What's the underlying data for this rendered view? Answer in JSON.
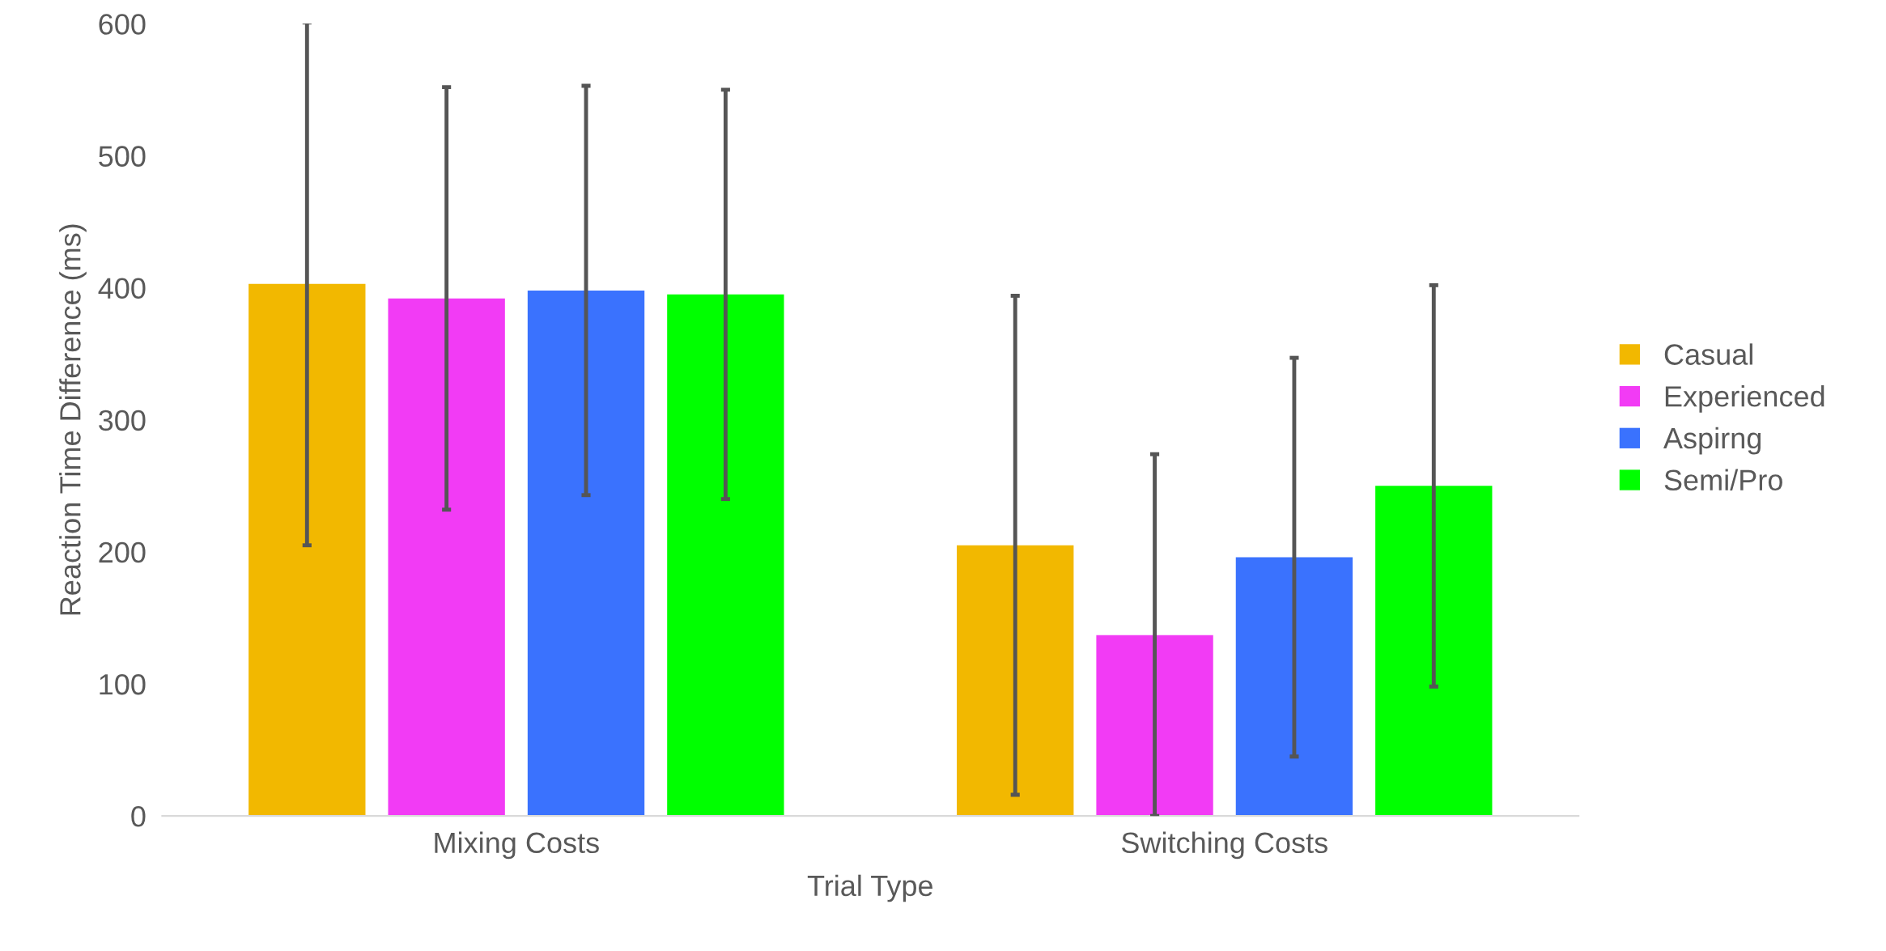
{
  "chart_data": {
    "type": "bar",
    "xlabel": "Trial Type",
    "ylabel": "Reaction Time Difference (ms)",
    "categories": [
      "Mixing Costs",
      "Switching Costs"
    ],
    "series": [
      {
        "name": "Casual",
        "color": "#f2b800",
        "values": [
          403,
          205
        ],
        "errors": [
          198,
          189
        ]
      },
      {
        "name": "Experienced",
        "color": "#f23bf5",
        "values": [
          392,
          137
        ],
        "errors": [
          160,
          137
        ]
      },
      {
        "name": "Aspirng",
        "color": "#3a72fe",
        "values": [
          398,
          196
        ],
        "errors": [
          155,
          151
        ]
      },
      {
        "name": "Semi/Pro",
        "color": "#00ff00",
        "values": [
          395,
          250
        ],
        "errors": [
          155,
          152
        ]
      }
    ],
    "ylim": [
      0,
      600
    ],
    "yticks": [
      0,
      100,
      200,
      300,
      400,
      500,
      600
    ],
    "grid": false,
    "legend": "right"
  }
}
